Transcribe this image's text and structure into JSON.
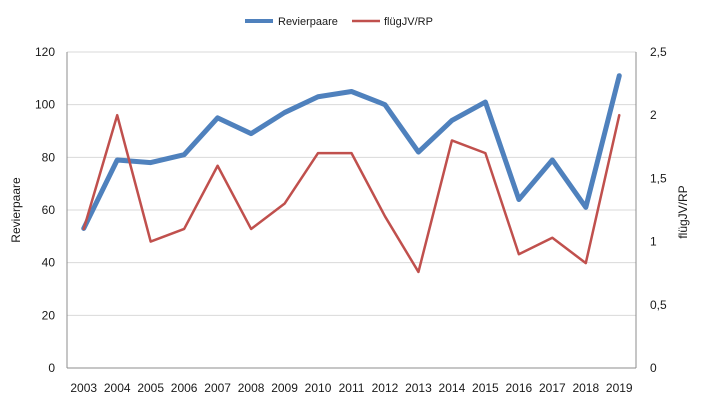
{
  "chart_data": {
    "type": "line",
    "x": [
      "2003",
      "2004",
      "2005",
      "2006",
      "2007",
      "2008",
      "2009",
      "2010",
      "2011",
      "2012",
      "2013",
      "2014",
      "2015",
      "2016",
      "2017",
      "2018",
      "2019"
    ],
    "series": [
      {
        "name": "Revierpaare",
        "axis": "left",
        "color": "#4f81bd",
        "values": [
          53,
          79,
          78,
          81,
          95,
          89,
          97,
          103,
          105,
          100,
          82,
          94,
          101,
          64,
          79,
          61,
          111
        ]
      },
      {
        "name": "flügJV/RP",
        "axis": "right",
        "color": "#c0504d",
        "values": [
          1.1,
          2.0,
          1.0,
          1.1,
          1.6,
          1.1,
          1.3,
          1.7,
          1.7,
          1.2,
          0.76,
          1.8,
          1.7,
          0.9,
          1.03,
          0.83,
          2.0
        ]
      }
    ],
    "ylabel": "Revierpaare",
    "ylabel_right": "flügJV/RP",
    "ylim": [
      0,
      120
    ],
    "ylim_right": [
      0,
      2.5
    ],
    "yticks": [
      "0",
      "20",
      "40",
      "60",
      "80",
      "100",
      "120"
    ],
    "yticks_right": [
      "0",
      "0,5",
      "1",
      "1,5",
      "2",
      "2,5"
    ],
    "grid": true,
    "legend_position": "top"
  }
}
